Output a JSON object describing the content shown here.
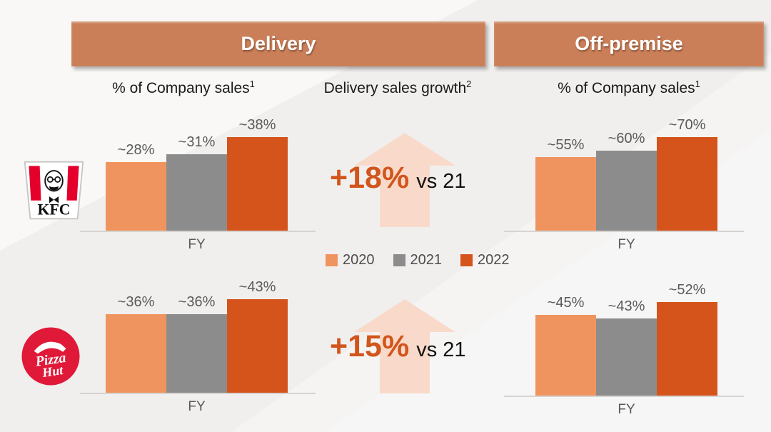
{
  "slide": {
    "banners": [
      {
        "id": "delivery",
        "label": "Delivery"
      },
      {
        "id": "off-premise",
        "label": "Off-premise"
      }
    ],
    "column_headers": [
      {
        "text": "% of Company sales",
        "sup": "1"
      },
      {
        "text": "Delivery sales growth",
        "sup": "2"
      },
      {
        "text": "% of Company sales",
        "sup": "1"
      }
    ],
    "brands": [
      {
        "name": "KFC"
      },
      {
        "name": "Pizza Hut"
      }
    ],
    "legend": [
      {
        "label": "2020",
        "color": "#F0945F"
      },
      {
        "label": "2021",
        "color": "#8C8C8C"
      },
      {
        "label": "2022",
        "color": "#D4541C"
      }
    ],
    "growth_callouts": [
      {
        "brand": "KFC",
        "value": "+18%",
        "suffix": "vs 21"
      },
      {
        "brand": "Pizza Hut",
        "value": "+15%",
        "suffix": "vs 21"
      }
    ],
    "axis_label": "FY"
  },
  "chart_data": [
    {
      "id": "kfc-delivery",
      "type": "bar",
      "brand": "KFC",
      "panel": "Delivery",
      "title": "% of Company sales",
      "categories": [
        "2020",
        "2021",
        "2022"
      ],
      "values": [
        28,
        31,
        38
      ],
      "value_labels": [
        "~28%",
        "~31%",
        "~38%"
      ],
      "xlabel": "FY",
      "ylabel": "% of company sales",
      "approximate": true,
      "grid": false
    },
    {
      "id": "kfc-off-premise",
      "type": "bar",
      "brand": "KFC",
      "panel": "Off-premise",
      "title": "% of Company sales",
      "categories": [
        "2020",
        "2021",
        "2022"
      ],
      "values": [
        55,
        60,
        70
      ],
      "value_labels": [
        "~55%",
        "~60%",
        "~70%"
      ],
      "xlabel": "FY",
      "ylabel": "% of company sales",
      "approximate": true,
      "grid": false
    },
    {
      "id": "pizza-hut-delivery",
      "type": "bar",
      "brand": "Pizza Hut",
      "panel": "Delivery",
      "title": "% of Company sales",
      "categories": [
        "2020",
        "2021",
        "2022"
      ],
      "values": [
        36,
        36,
        43
      ],
      "value_labels": [
        "~36%",
        "~36%",
        "~43%"
      ],
      "xlabel": "FY",
      "ylabel": "% of company sales",
      "approximate": true,
      "grid": false
    },
    {
      "id": "pizza-hut-off-premise",
      "type": "bar",
      "brand": "Pizza Hut",
      "panel": "Off-premise",
      "title": "% of Company sales",
      "categories": [
        "2020",
        "2021",
        "2022"
      ],
      "values": [
        45,
        43,
        52
      ],
      "value_labels": [
        "~45%",
        "~43%",
        "~52%"
      ],
      "xlabel": "FY",
      "ylabel": "% of company sales",
      "approximate": true,
      "grid": false
    }
  ],
  "colors": {
    "banner": "#CB7F58",
    "bar_2020": "#F0945F",
    "bar_2021": "#8C8C8C",
    "bar_2022": "#D4541C",
    "arrow_fill": "#F9DACA",
    "growth_value_text": "#D2551C",
    "label_gray": "#595959",
    "legend_text": "#4D4D4D",
    "axis_line": "#D6D3D1",
    "kfc_red": "#E4002B",
    "pizza_hut_red": "#E01938"
  }
}
